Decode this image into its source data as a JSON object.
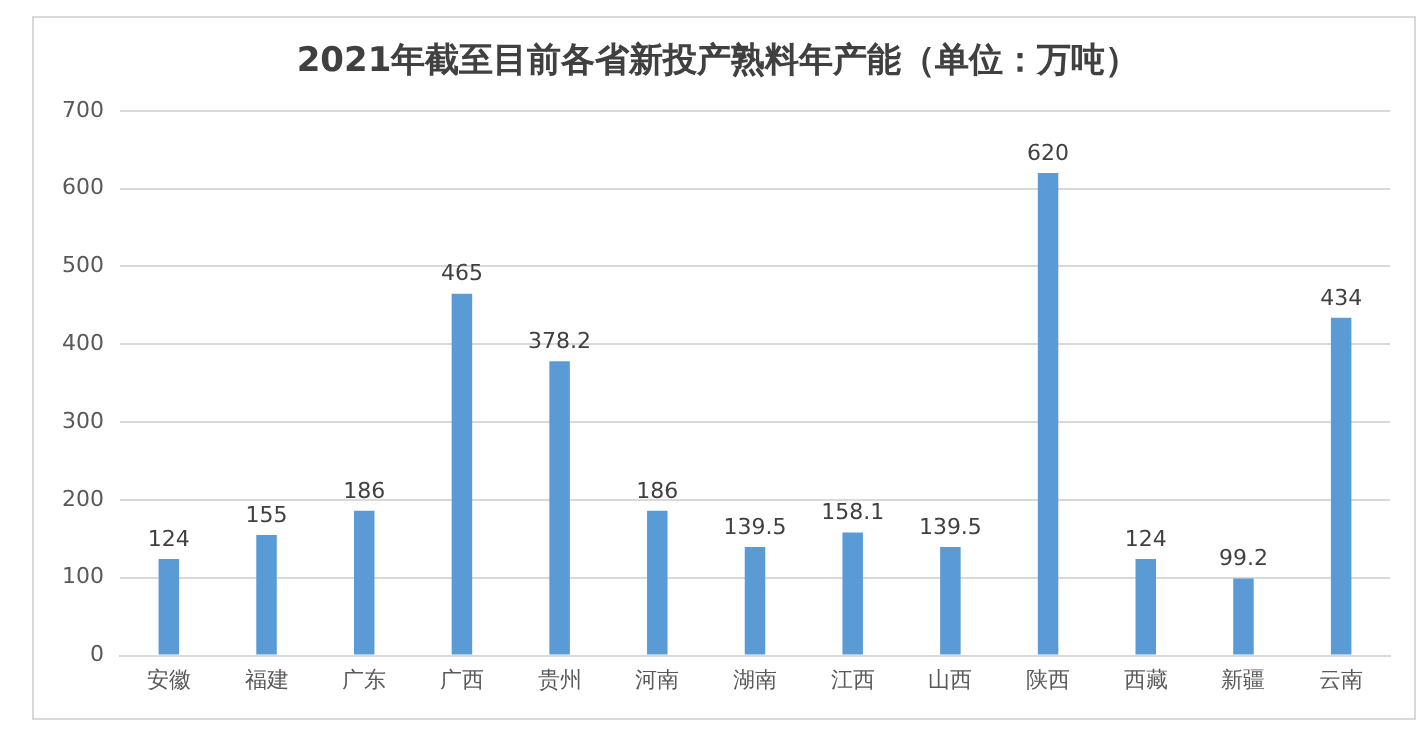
{
  "chart_data": {
    "type": "bar",
    "title": "2021年截至目前各省新投产熟料年产能（单位：万吨）",
    "categories": [
      "安徽",
      "福建",
      "广东",
      "广西",
      "贵州",
      "河南",
      "湖南",
      "江西",
      "山西",
      "陕西",
      "西藏",
      "新疆",
      "云南"
    ],
    "values": [
      124,
      155,
      186,
      465,
      378.2,
      186,
      139.5,
      158.1,
      139.5,
      620,
      124,
      99.2,
      434
    ],
    "color": "#5b9bd5",
    "ylim": [
      0,
      700
    ],
    "yticks": [
      0,
      100,
      200,
      300,
      400,
      500,
      600,
      700
    ],
    "grid": "y",
    "data_labels": true
  }
}
